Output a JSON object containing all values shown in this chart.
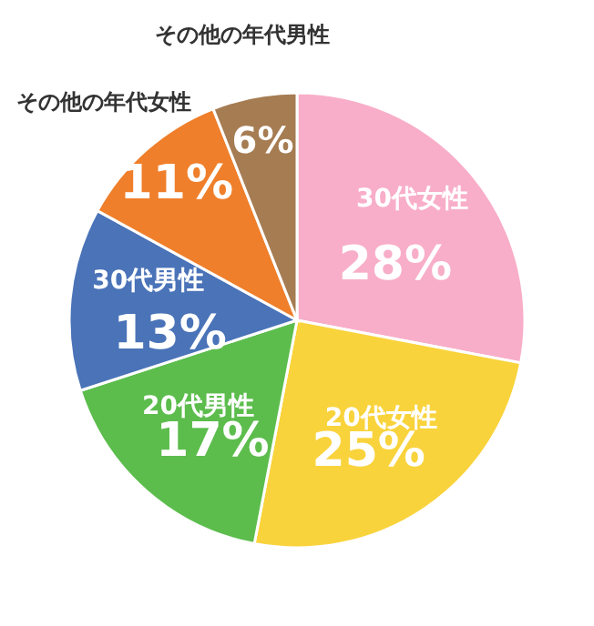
{
  "chart_data": {
    "type": "pie",
    "categories": [
      "30代女性",
      "20代女性",
      "20代男性",
      "30代男性",
      "その他の年代女性",
      "その他の年代男性"
    ],
    "values": [
      28,
      25,
      17,
      13,
      11,
      6
    ],
    "colors": [
      "#f8aec8",
      "#f9d33c",
      "#5cbd4d",
      "#4a73b8",
      "#ef7f2b",
      "#a67c52"
    ],
    "value_labels": [
      "28%",
      "25%",
      "17%",
      "13%",
      "11%",
      "6%"
    ]
  }
}
